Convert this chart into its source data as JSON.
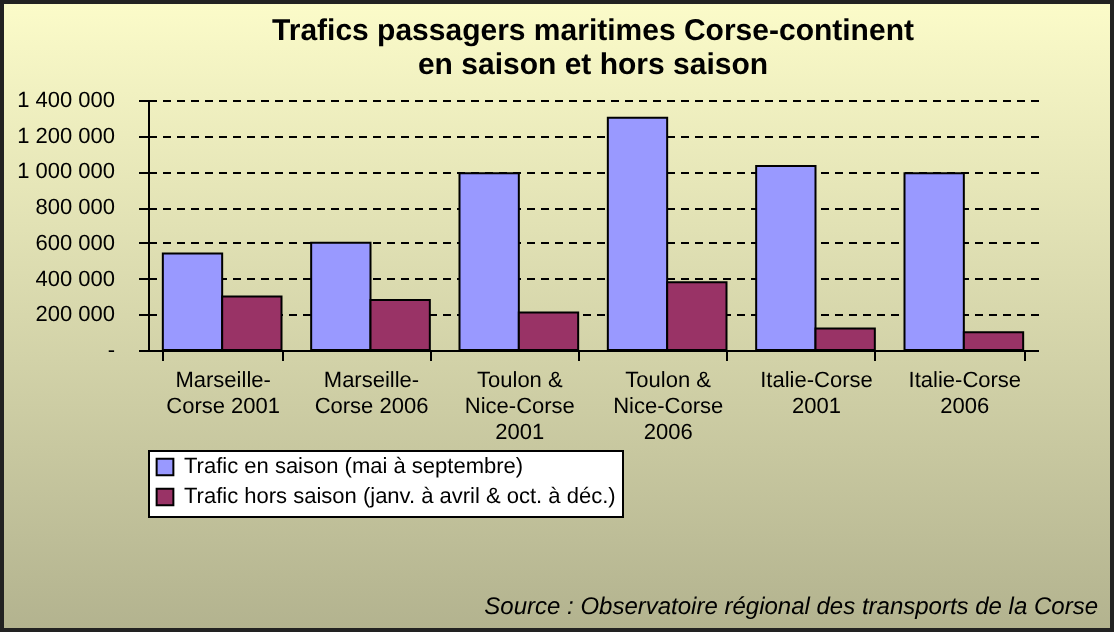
{
  "chart_data": {
    "type": "bar",
    "title": "Trafics passagers maritimes Corse-continent en saison et hors saison",
    "categories": [
      "Marseille-Corse 2001",
      "Marseille-Corse 2006",
      "Toulon & Nice-Corse 2001",
      "Toulon & Nice-Corse 2006",
      "Italie-Corse 2001",
      "Italie-Corse 2006"
    ],
    "series": [
      {
        "name": "Trafic en saison (mai à septembre)",
        "color": "#9999ff",
        "values": [
          540000,
          600000,
          990000,
          1300000,
          1030000,
          990000
        ]
      },
      {
        "name": "Trafic hors saison (janv. à avril & oct. à déc.)",
        "color": "#993366",
        "values": [
          300000,
          280000,
          210000,
          380000,
          120000,
          100000
        ]
      }
    ],
    "ylim": [
      0,
      1400000
    ],
    "yticks": [
      {
        "value": 0,
        "label": "-"
      },
      {
        "value": 200000,
        "label": "200 000"
      },
      {
        "value": 400000,
        "label": "400 000"
      },
      {
        "value": 600000,
        "label": "600 000"
      },
      {
        "value": 800000,
        "label": "800 000"
      },
      {
        "value": 1000000,
        "label": "1 000 000"
      },
      {
        "value": 1200000,
        "label": "1 200 000"
      },
      {
        "value": 1400000,
        "label": "1 400 000"
      }
    ],
    "grid": "y",
    "legend": "bottom",
    "annotations": [
      "Source : Observatoire régional des transports de la Corse"
    ]
  }
}
